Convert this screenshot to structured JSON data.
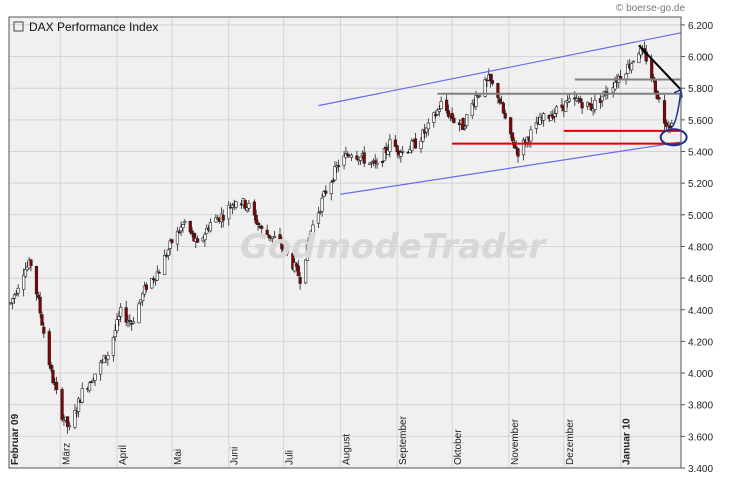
{
  "source": "© boerse-go.de",
  "watermark": "GodmodeTrader",
  "colors": {
    "background": "#f0f0f0",
    "grid": "#d4d4d4",
    "up_candle": "#ffffff",
    "down_candle": "#8b0000",
    "channel": "#6a6af0",
    "resistance": "#808080",
    "support": "#e00000",
    "trendline": "#000000",
    "arrow": "#1c2f8c"
  },
  "chart_data": {
    "type": "candlestick",
    "legend": "DAX Performance Index",
    "legend_position": "top-left",
    "grid": true,
    "ylim": [
      3400,
      6250
    ],
    "yticks": [
      3400,
      3600,
      3800,
      4000,
      4200,
      4400,
      4600,
      4800,
      5000,
      5200,
      5400,
      5600,
      5800,
      6000,
      6200
    ],
    "ytick_labels": [
      "3.400",
      "3.600",
      "3.800",
      "4.000",
      "4.200",
      "4.400",
      "4.600",
      "4.800",
      "5.000",
      "5.200",
      "5.400",
      "5.600",
      "5.800",
      "6.000",
      "6.200"
    ],
    "xlim": [
      "2009-02-01",
      "2010-02-03"
    ],
    "x_months": [
      {
        "label": "Februar 09",
        "date": "2009-02-01",
        "bold": true
      },
      {
        "label": "März",
        "date": "2009-03-01",
        "bold": false
      },
      {
        "label": "April",
        "date": "2009-04-01",
        "bold": false
      },
      {
        "label": "Mai",
        "date": "2009-05-01",
        "bold": false
      },
      {
        "label": "Juni",
        "date": "2009-06-01",
        "bold": false
      },
      {
        "label": "Juli",
        "date": "2009-07-01",
        "bold": false
      },
      {
        "label": "August",
        "date": "2009-08-01",
        "bold": false
      },
      {
        "label": "September",
        "date": "2009-09-01",
        "bold": false
      },
      {
        "label": "Oktober",
        "date": "2009-10-01",
        "bold": false
      },
      {
        "label": "November",
        "date": "2009-11-01",
        "bold": false
      },
      {
        "label": "Dezember",
        "date": "2009-12-01",
        "bold": false
      },
      {
        "label": "Januar 10",
        "date": "2010-01-01",
        "bold": true
      }
    ],
    "path_points": [
      [
        "2009-02-02",
        4440
      ],
      [
        "2009-02-09",
        4650
      ],
      [
        "2009-02-13",
        4690
      ],
      [
        "2009-02-17",
        4450
      ],
      [
        "2009-02-24",
        4000
      ],
      [
        "2009-03-02",
        3740
      ],
      [
        "2009-03-06",
        3640
      ],
      [
        "2009-03-13",
        3880
      ],
      [
        "2009-03-20",
        4000
      ],
      [
        "2009-03-27",
        4120
      ],
      [
        "2009-04-03",
        4380
      ],
      [
        "2009-04-09",
        4320
      ],
      [
        "2009-04-17",
        4550
      ],
      [
        "2009-04-24",
        4650
      ],
      [
        "2009-05-01",
        4830
      ],
      [
        "2009-05-08",
        4950
      ],
      [
        "2009-05-15",
        4800
      ],
      [
        "2009-05-22",
        4950
      ],
      [
        "2009-05-29",
        5000
      ],
      [
        "2009-06-05",
        5100
      ],
      [
        "2009-06-12",
        5050
      ],
      [
        "2009-06-19",
        4900
      ],
      [
        "2009-06-26",
        4850
      ],
      [
        "2009-07-03",
        4750
      ],
      [
        "2009-07-10",
        4600
      ],
      [
        "2009-07-16",
        4900
      ],
      [
        "2009-07-24",
        5150
      ],
      [
        "2009-07-31",
        5320
      ],
      [
        "2009-08-07",
        5400
      ],
      [
        "2009-08-14",
        5350
      ],
      [
        "2009-08-21",
        5300
      ],
      [
        "2009-08-28",
        5450
      ],
      [
        "2009-09-04",
        5400
      ],
      [
        "2009-09-11",
        5450
      ],
      [
        "2009-09-18",
        5550
      ],
      [
        "2009-09-25",
        5700
      ],
      [
        "2009-10-02",
        5600
      ],
      [
        "2009-10-07",
        5560
      ],
      [
        "2009-10-14",
        5750
      ],
      [
        "2009-10-21",
        5850
      ],
      [
        "2009-10-26",
        5760
      ],
      [
        "2009-11-02",
        5480
      ],
      [
        "2009-11-06",
        5400
      ],
      [
        "2009-11-12",
        5500
      ],
      [
        "2009-11-19",
        5600
      ],
      [
        "2009-11-26",
        5650
      ],
      [
        "2009-12-02",
        5700
      ],
      [
        "2009-12-09",
        5720
      ],
      [
        "2009-12-16",
        5680
      ],
      [
        "2009-12-23",
        5760
      ],
      [
        "2009-12-30",
        5860
      ],
      [
        "2010-01-06",
        5950
      ],
      [
        "2010-01-11",
        6040
      ],
      [
        "2010-01-15",
        5990
      ],
      [
        "2010-01-20",
        5800
      ],
      [
        "2010-01-25",
        5600
      ],
      [
        "2010-01-29",
        5570
      ]
    ],
    "annotations": {
      "channel_upper": [
        [
          "2009-07-20",
          5690
        ],
        [
          "2010-02-03",
          6150
        ]
      ],
      "channel_lower": [
        [
          "2009-08-01",
          5130
        ],
        [
          "2010-02-03",
          5460
        ]
      ],
      "resistance_1": [
        [
          "2009-12-07",
          5855
        ],
        [
          "2010-02-03",
          5855
        ]
      ],
      "resistance_2": [
        [
          "2009-09-23",
          5765
        ],
        [
          "2010-02-03",
          5765
        ]
      ],
      "support_1": [
        [
          "2009-12-01",
          5530
        ],
        [
          "2010-02-03",
          5530
        ]
      ],
      "support_2": [
        [
          "2009-10-01",
          5450
        ],
        [
          "2010-02-03",
          5450
        ]
      ],
      "trendline": [
        [
          "2010-01-11",
          6070
        ],
        [
          "2010-02-03",
          5790
        ]
      ],
      "arrow_path": [
        [
          "2010-01-29",
          5555
        ],
        [
          "2010-02-03",
          5790
        ]
      ],
      "ellipse_center": [
        "2010-01-30",
        5490
      ]
    }
  }
}
